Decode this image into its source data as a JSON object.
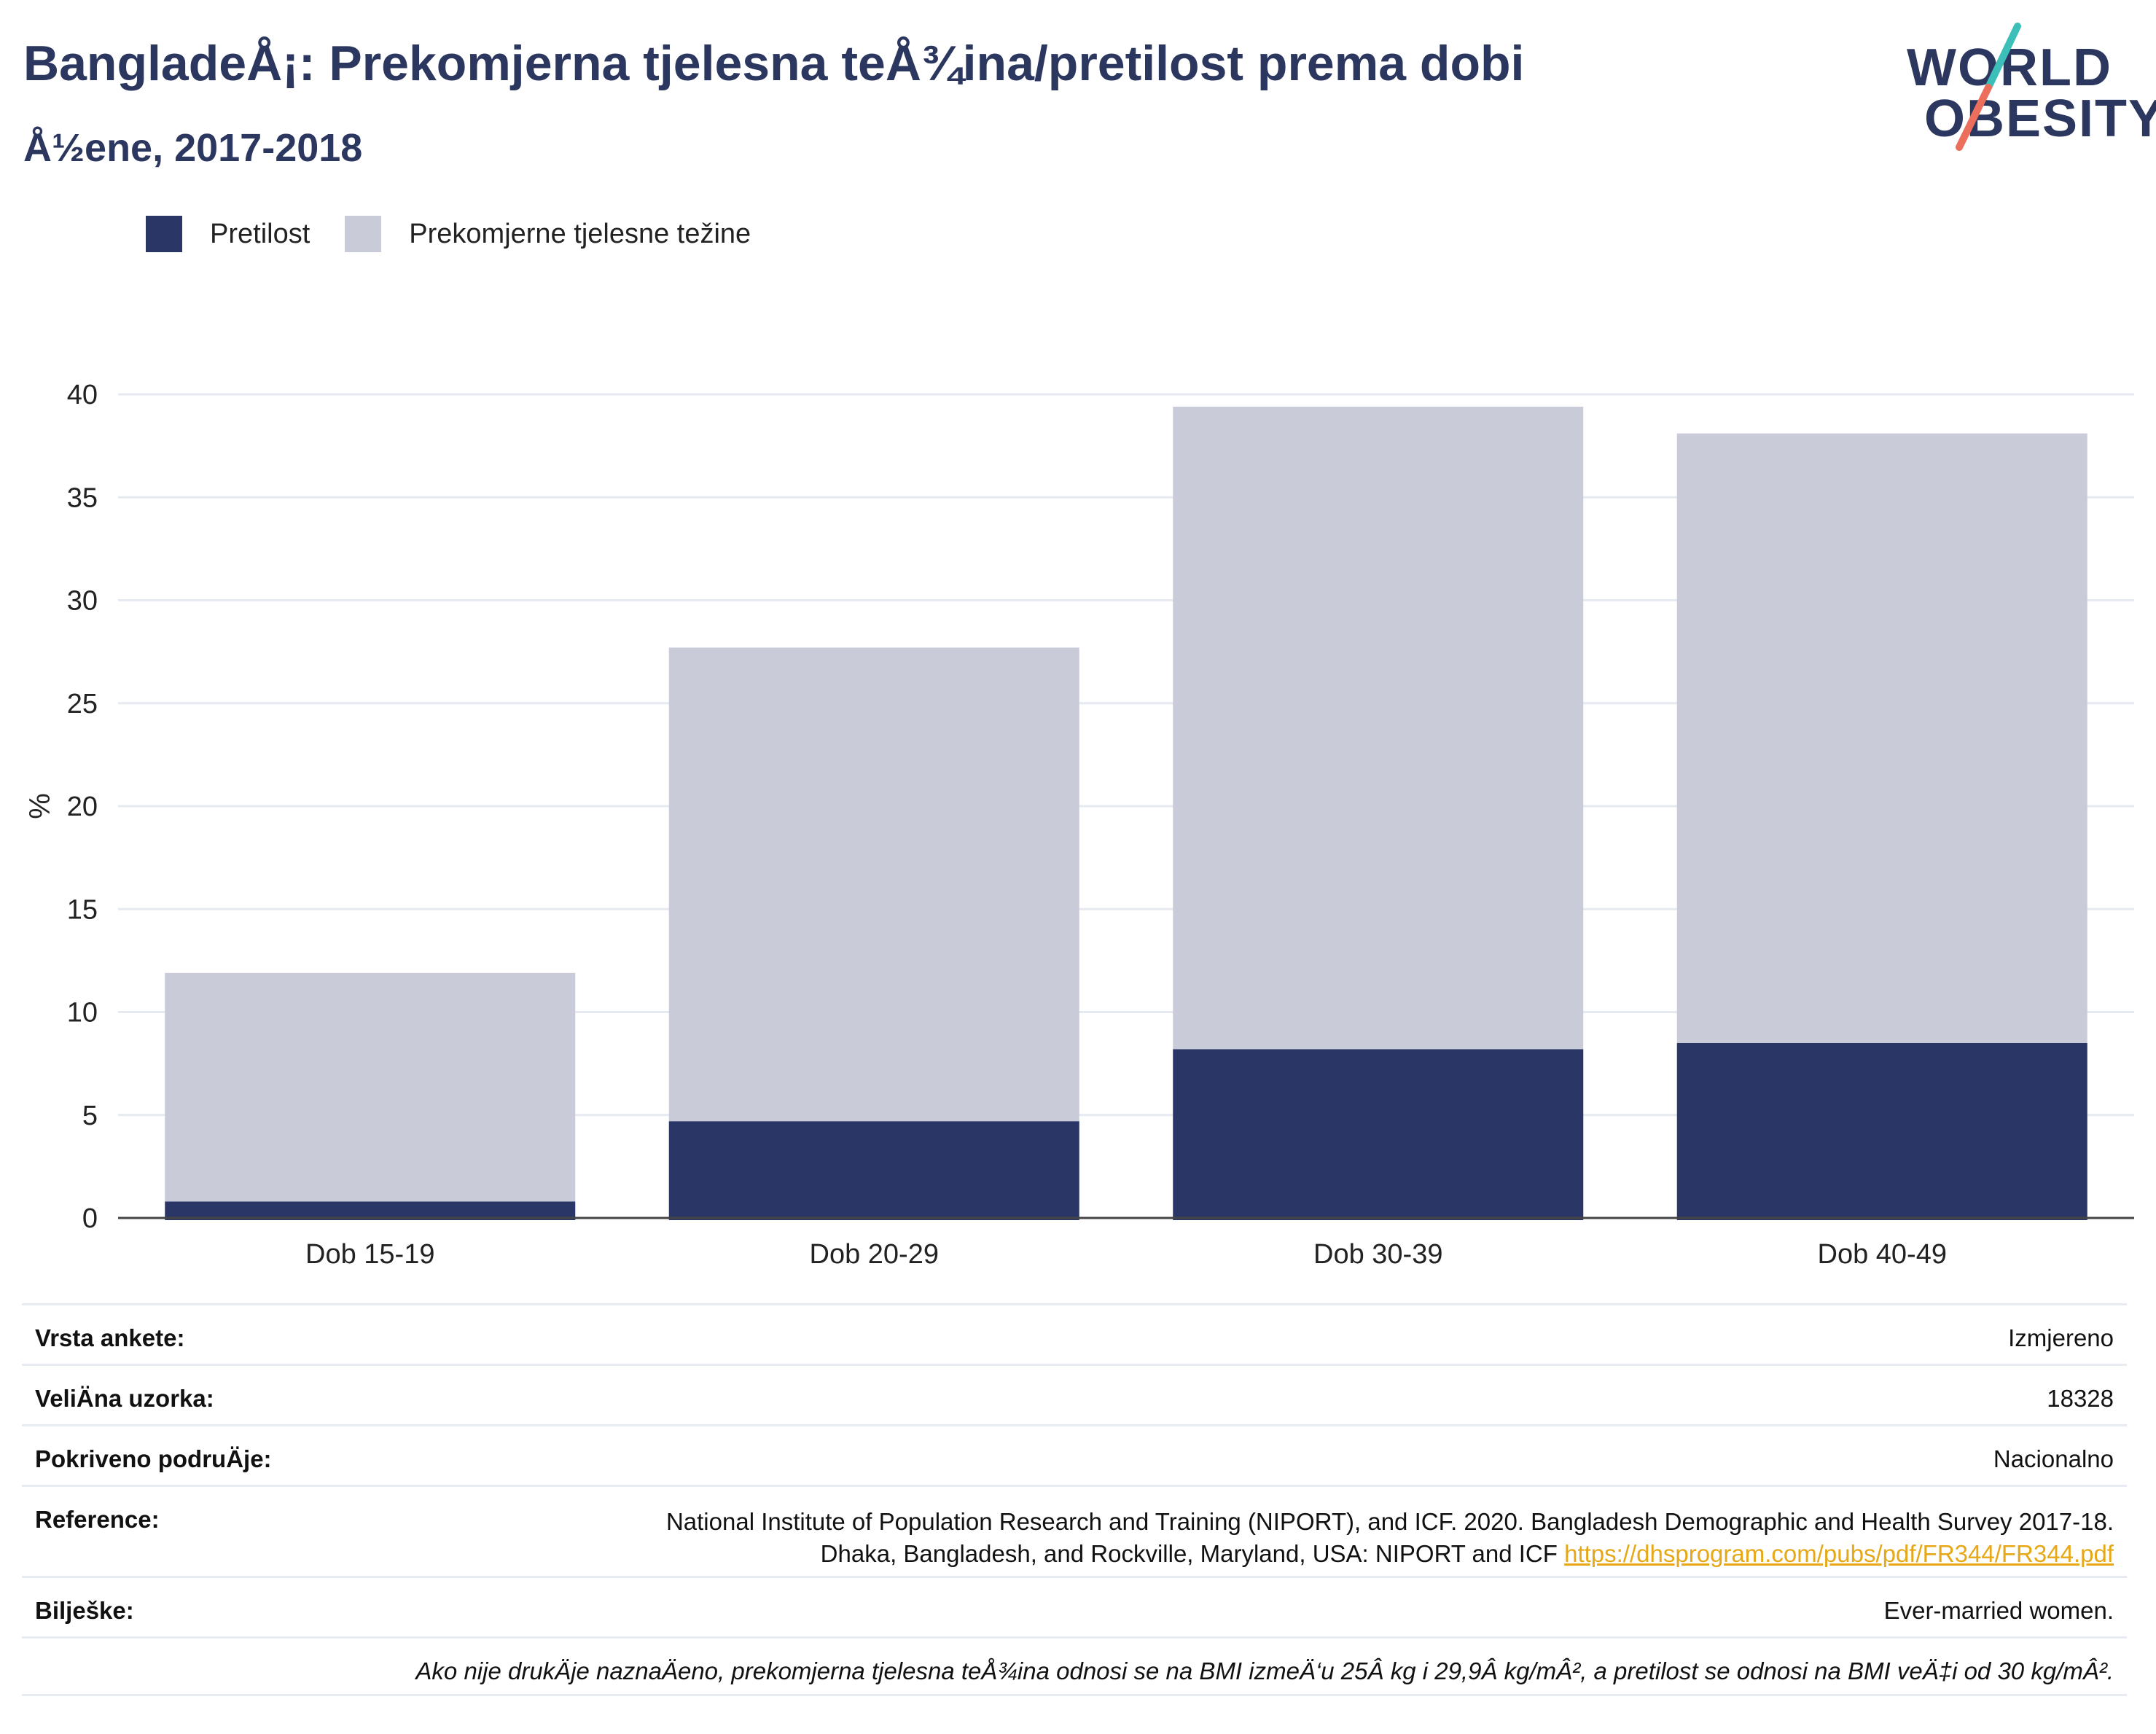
{
  "title": "BangladeÅ¡: Prekomjerna tjelesna teÅ¾ina/pretilost prema dobi",
  "subtitle": "Å½ene, 2017-2018",
  "logo": {
    "line1": "WORLD",
    "line2": "OBESITY"
  },
  "colors": {
    "obesity": "#2a3665",
    "overweight": "#c9ccd8",
    "title": "#2c375f",
    "link": "#e6a817",
    "logo_teal": "#3bbfb8",
    "logo_coral": "#ec6f5e"
  },
  "legend": [
    {
      "label": "Pretilost",
      "color": "#2a3665"
    },
    {
      "label": "Prekomjerne tjelesne težine",
      "color": "#c9ccd8"
    }
  ],
  "chart_data": {
    "type": "bar",
    "stacked": true,
    "categories": [
      "Dob 15-19",
      "Dob 20-29",
      "Dob 30-39",
      "Dob 40-49"
    ],
    "series": [
      {
        "name": "Pretilost",
        "values": [
          0.8,
          4.7,
          8.2,
          8.5
        ]
      },
      {
        "name": "Prekomjerne tjelesne težine",
        "values": [
          11.1,
          23.0,
          31.2,
          29.6
        ]
      }
    ],
    "ylabel": "%",
    "ylim": [
      0,
      40
    ],
    "yticks": [
      0,
      5,
      10,
      15,
      20,
      25,
      30,
      35,
      40
    ],
    "grid": true,
    "legend_position": "top-left"
  },
  "info": {
    "survey_type_label": "Vrsta ankete:",
    "survey_type_value": "Izmjereno",
    "sample_size_label": "VeliÄ\bna uzorka:",
    "sample_size_value": "18328",
    "coverage_label": "Pokriveno podruÄ\bje:",
    "coverage_value": "Nacionalno",
    "reference_label": "Reference:",
    "reference_line1": "National Institute of Population Research and Training (NIPORT), and ICF. 2020. Bangladesh Demographic and Health Survey 2017-18.",
    "reference_line2": "Dhaka, Bangladesh, and Rockville, Maryland, USA: NIPORT and ICF ",
    "reference_link": "https://dhsprogram.com/pubs/pdf/FR344/FR344.pdf",
    "notes_label": "Bilješke:",
    "notes_value": "Ever-married women.",
    "footnote": "Ako nije drukÄ\bje naznaÄ\beno, prekomjerna tjelesna teÅ¾ina odnosi se na BMI izmeÄ‘u 25Â kg i 29,9Â kg/mÂ², a pretilost se odnosi na BMI veÄ‡i od 30 kg/mÂ²."
  }
}
